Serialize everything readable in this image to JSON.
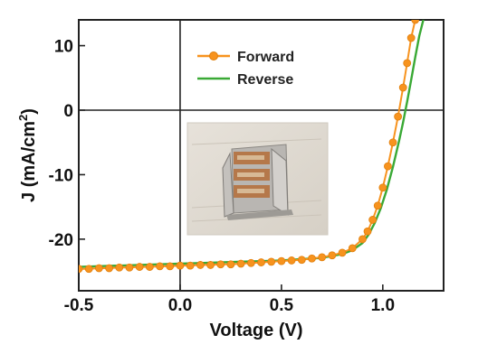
{
  "chart_data": {
    "type": "line",
    "xlabel": "Voltage (V)",
    "ylabel_main": "J (mA/cm",
    "ylabel_sup": "2",
    "ylabel_close": ")",
    "xlim": [
      -0.5,
      1.3
    ],
    "ylim": [
      -28,
      14
    ],
    "x_ticks": [
      -0.5,
      0.0,
      0.5,
      1.0
    ],
    "x_tick_labels": [
      "-0.5",
      "0.0",
      "0.5",
      "1.0"
    ],
    "y_ticks": [
      10,
      0,
      -10,
      -20
    ],
    "y_tick_labels": [
      "10",
      "0",
      "-10",
      "-20"
    ],
    "legend_position": "top-left",
    "series": [
      {
        "name": "Forward",
        "color": "#f7931e",
        "marker": "circle",
        "x": [
          -0.5,
          -0.45,
          -0.4,
          -0.35,
          -0.3,
          -0.25,
          -0.2,
          -0.15,
          -0.1,
          -0.05,
          0.0,
          0.05,
          0.1,
          0.15,
          0.2,
          0.25,
          0.3,
          0.35,
          0.4,
          0.45,
          0.5,
          0.55,
          0.6,
          0.65,
          0.7,
          0.75,
          0.8,
          0.85,
          0.9,
          0.925,
          0.95,
          0.975,
          1.0,
          1.025,
          1.05,
          1.075,
          1.1,
          1.12,
          1.14,
          1.16
        ],
        "y": [
          -24.6,
          -24.6,
          -24.5,
          -24.5,
          -24.4,
          -24.4,
          -24.3,
          -24.3,
          -24.2,
          -24.2,
          -24.1,
          -24.1,
          -24.0,
          -24.0,
          -23.9,
          -23.9,
          -23.8,
          -23.7,
          -23.6,
          -23.5,
          -23.4,
          -23.3,
          -23.2,
          -23.0,
          -22.8,
          -22.5,
          -22.1,
          -21.4,
          -20.0,
          -18.8,
          -17.0,
          -14.8,
          -12.0,
          -8.7,
          -5.0,
          -1.0,
          3.5,
          7.3,
          11.2,
          14.0
        ]
      },
      {
        "name": "Reverse",
        "color": "#3aa935",
        "marker": "none",
        "x": [
          -0.5,
          -0.4,
          -0.3,
          -0.2,
          -0.1,
          0.0,
          0.1,
          0.2,
          0.3,
          0.4,
          0.5,
          0.6,
          0.7,
          0.75,
          0.8,
          0.85,
          0.9,
          0.93,
          0.96,
          0.99,
          1.02,
          1.05,
          1.08,
          1.1,
          1.12,
          1.14,
          1.16,
          1.18,
          1.2
        ],
        "y": [
          -24.3,
          -24.2,
          -24.1,
          -24.0,
          -23.9,
          -23.8,
          -23.7,
          -23.6,
          -23.5,
          -23.4,
          -23.3,
          -23.1,
          -22.9,
          -22.6,
          -22.3,
          -21.7,
          -20.6,
          -19.3,
          -17.5,
          -15.2,
          -12.3,
          -8.8,
          -4.8,
          -1.9,
          1.3,
          4.7,
          8.2,
          11.5,
          14.0
        ]
      }
    ],
    "inset": {
      "description_name": "device-photo-inset"
    }
  }
}
